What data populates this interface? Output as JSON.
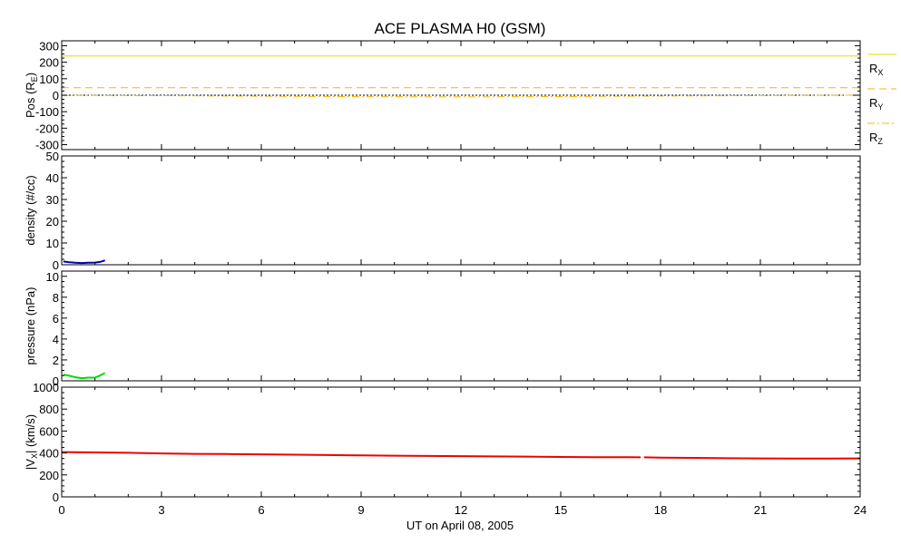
{
  "chart_data": {
    "type": "line",
    "title": "ACE PLASMA H0 (GSM)",
    "xlabel": "UT on April 08, 2005",
    "xlim": [
      0,
      24
    ],
    "x_ticks": [
      "0",
      "3",
      "6",
      "9",
      "12",
      "15",
      "18",
      "21",
      "24"
    ],
    "panels": [
      {
        "id": "position",
        "ylabel": "Pos (R",
        "ylabel_sub": "E",
        "ylabel_close": ")",
        "ylim": [
          -330,
          330
        ],
        "y_ticks": [
          "300",
          "200",
          "100",
          "0",
          "-100",
          "-200",
          "-300"
        ],
        "zero_line": true,
        "legend_placement": "right",
        "series": [
          {
            "name": "R",
            "name_sub": "X",
            "color": "#e8d800",
            "style": "solid",
            "x": [
              0,
              24
            ],
            "y": [
              238,
              238
            ]
          },
          {
            "name": "R",
            "name_sub": "Y",
            "color": "#ffb000",
            "style": "dashed",
            "x": [
              0,
              24
            ],
            "y": [
              45,
              45
            ]
          },
          {
            "name": "R",
            "name_sub": "Z",
            "color": "#ffb000",
            "style": "dashdot",
            "x": [
              0,
              3,
              6,
              9,
              12,
              15,
              18,
              21,
              24
            ],
            "y": [
              -1,
              -3,
              -6,
              -9,
              -10,
              -8,
              -5,
              -2,
              0
            ]
          }
        ]
      },
      {
        "id": "density",
        "ylabel": "density (#/cc)",
        "ylim": [
          0,
          50
        ],
        "y_ticks": [
          "50",
          "40",
          "30",
          "20",
          "10",
          "0"
        ],
        "series": [
          {
            "color": "#0000b0",
            "x": [
              0.05,
              0.2,
              0.4,
              0.6,
              0.8,
              1.0,
              1.15,
              1.3
            ],
            "y": [
              1.5,
              1.2,
              0.9,
              0.8,
              0.9,
              1.0,
              1.3,
              2.0
            ]
          }
        ]
      },
      {
        "id": "pressure",
        "ylabel": "pressure (nPa)",
        "ylim": [
          0,
          10.5
        ],
        "y_ticks": [
          "10",
          "8",
          "6",
          "4",
          "2",
          "0"
        ],
        "series": [
          {
            "color": "#00dd00",
            "x": [
              0.05,
              0.2,
              0.4,
              0.6,
              0.8,
              1.0,
              1.15,
              1.3
            ],
            "y": [
              0.6,
              0.5,
              0.35,
              0.25,
              0.3,
              0.3,
              0.5,
              0.75
            ]
          }
        ]
      },
      {
        "id": "velocity",
        "ylabel": "|V",
        "ylabel_sub": "X",
        "ylabel_close": "| (km/s)",
        "ylim": [
          0,
          1000
        ],
        "y_ticks": [
          "1000",
          "800",
          "600",
          "400",
          "200",
          "0"
        ],
        "series": [
          {
            "color": "#ee0000",
            "x": [
              0,
              1,
              2,
              3,
              4,
              5,
              6,
              7,
              8,
              9,
              10,
              11,
              12,
              13,
              14,
              15,
              16,
              17,
              17.4
            ],
            "y": [
              408,
              405,
              402,
              396,
              392,
              390,
              388,
              384,
              381,
              378,
              375,
              373,
              371,
              369,
              367,
              364,
              362,
              361,
              360
            ]
          },
          {
            "color": "#ee0000",
            "x": [
              17.5,
              18,
              19,
              20,
              21,
              22,
              23,
              24
            ],
            "y": [
              360,
              358,
              355,
              352,
              350,
              349,
              349,
              350
            ]
          }
        ]
      }
    ]
  }
}
